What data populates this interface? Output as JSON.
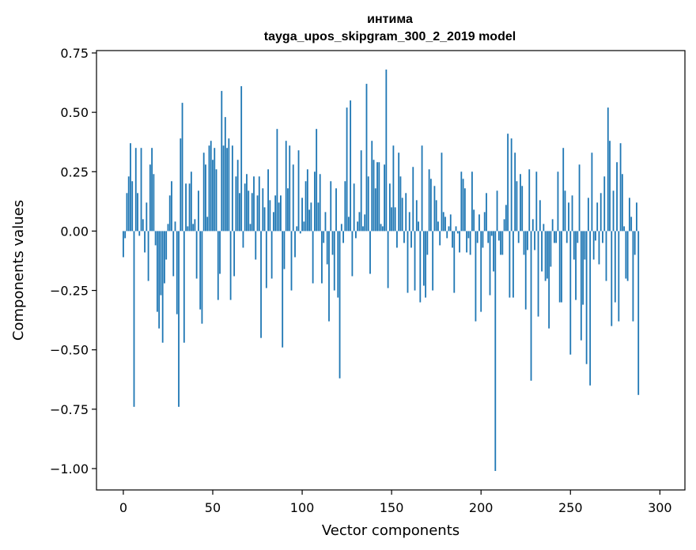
{
  "chart_data": {
    "type": "bar",
    "title": "интима",
    "subtitle": "tayga_upos_skipgram_300_2_2019 model",
    "xlabel": "Vector components",
    "ylabel": "Components values",
    "xlim": [
      -15,
      314
    ],
    "ylim": [
      -1.09,
      0.76
    ],
    "xticks": [
      0,
      50,
      100,
      150,
      200,
      250,
      300
    ],
    "yticks": [
      0.75,
      0.5,
      0.25,
      0.0,
      -0.25,
      -0.5,
      -0.75,
      -1.0
    ],
    "ytick_labels": [
      "0.75",
      "0.50",
      "0.25",
      "0.00",
      "−0.25",
      "−0.50",
      "−0.75",
      "−1.00"
    ],
    "bar_color": "#1f77b4",
    "values": [
      -0.11,
      -0.03,
      0.16,
      0.23,
      0.37,
      0.21,
      -0.74,
      0.35,
      0.16,
      -0.02,
      0.35,
      0.05,
      -0.09,
      0.12,
      -0.21,
      0.28,
      0.35,
      0.24,
      -0.06,
      -0.34,
      -0.41,
      -0.27,
      -0.47,
      -0.22,
      -0.12,
      0.03,
      0.15,
      0.21,
      -0.19,
      0.04,
      -0.35,
      -0.74,
      0.39,
      0.54,
      -0.47,
      0.2,
      0.02,
      0.2,
      0.25,
      0.03,
      0.05,
      -0.2,
      0.17,
      -0.33,
      -0.39,
      0.33,
      0.28,
      0.06,
      0.36,
      0.38,
      0.3,
      0.35,
      0.26,
      -0.29,
      -0.18,
      0.59,
      0.36,
      0.48,
      0.35,
      0.39,
      -0.29,
      0.36,
      -0.19,
      0.23,
      0.3,
      0.16,
      0.61,
      -0.07,
      0.2,
      0.24,
      0.17,
      0.03,
      0.16,
      0.23,
      -0.12,
      0.15,
      0.23,
      -0.45,
      0.18,
      0.1,
      -0.24,
      0.26,
      0.13,
      -0.2,
      0.08,
      0.15,
      0.43,
      0.12,
      0.15,
      -0.49,
      -0.16,
      0.38,
      0.18,
      0.36,
      -0.25,
      0.28,
      -0.11,
      0.02,
      0.34,
      -0.01,
      0.14,
      0.04,
      0.21,
      0.26,
      0.09,
      0.12,
      -0.22,
      0.25,
      0.43,
      0.12,
      0.24,
      -0.22,
      -0.05,
      0.08,
      -0.14,
      -0.38,
      0.21,
      -0.1,
      -0.25,
      0.18,
      -0.28,
      -0.62,
      0.03,
      -0.05,
      0.21,
      0.52,
      0.06,
      0.55,
      -0.19,
      0.2,
      -0.03,
      0.04,
      0.08,
      0.34,
      0.02,
      0.07,
      0.62,
      0.23,
      -0.18,
      0.38,
      0.3,
      0.18,
      0.29,
      0.29,
      0.03,
      0.02,
      0.28,
      0.68,
      -0.24,
      0.2,
      0.1,
      0.36,
      0.1,
      -0.07,
      0.33,
      0.23,
      0.14,
      -0.05,
      0.16,
      -0.26,
      0.08,
      -0.07,
      0.27,
      -0.25,
      0.13,
      0.04,
      -0.3,
      0.36,
      -0.23,
      -0.28,
      -0.1,
      0.26,
      0.22,
      -0.25,
      0.19,
      0.13,
      0.04,
      -0.06,
      0.33,
      0.08,
      0.06,
      -0.03,
      0.02,
      0.07,
      -0.07,
      -0.26,
      0.02,
      -0.01,
      -0.09,
      0.25,
      0.22,
      0.18,
      -0.09,
      -0.03,
      -0.1,
      0.25,
      0.09,
      -0.38,
      -0.05,
      0.07,
      -0.34,
      -0.07,
      0.08,
      0.16,
      -0.05,
      -0.27,
      -0.02,
      -0.17,
      -1.01,
      0.17,
      -0.04,
      -0.1,
      -0.1,
      0.05,
      0.11,
      0.41,
      -0.28,
      0.39,
      -0.28,
      0.33,
      0.21,
      -0.05,
      0.24,
      0.19,
      -0.1,
      -0.33,
      -0.08,
      0.26,
      -0.63,
      0.05,
      -0.08,
      0.25,
      -0.36,
      0.13,
      -0.17,
      0.03,
      -0.21,
      -0.2,
      -0.41,
      -0.15,
      0.05,
      -0.05,
      -0.05,
      0.25,
      -0.3,
      -0.3,
      0.35,
      0.17,
      -0.05,
      0.12,
      -0.52,
      0.15,
      -0.12,
      -0.29,
      -0.05,
      0.28,
      -0.46,
      -0.31,
      -0.12,
      -0.56,
      0.14,
      -0.65,
      0.33,
      -0.12,
      -0.04,
      0.12,
      -0.14,
      0.16,
      -0.05,
      0.23,
      -0.21,
      0.52,
      0.38,
      -0.4,
      0.17,
      -0.3,
      0.29,
      -0.38,
      0.37,
      0.24,
      0.02,
      -0.2,
      -0.21,
      0.14,
      0.06,
      -0.38,
      -0.1,
      0.12,
      -0.69
    ]
  }
}
